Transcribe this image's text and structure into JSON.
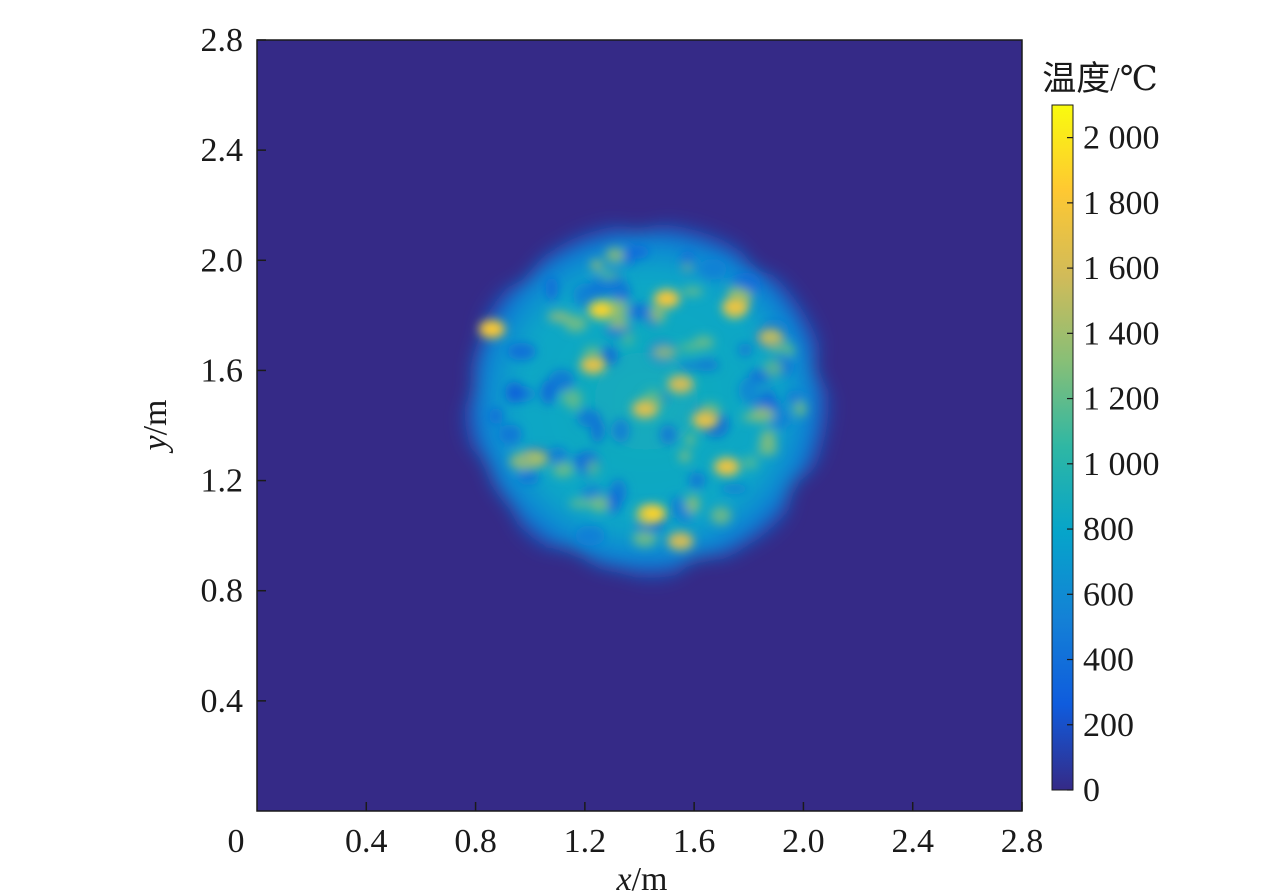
{
  "chart_data": {
    "type": "heatmap",
    "title": "",
    "xlabel": "x/m",
    "ylabel": "y/m",
    "xlim": [
      0,
      2.8
    ],
    "ylim": [
      0,
      2.8
    ],
    "x_ticks": [
      0.4,
      0.8,
      1.2,
      1.6,
      2.0,
      2.4,
      2.8
    ],
    "x_tick_labels": [
      "0.4",
      "0.8",
      "1.2",
      "1.6",
      "2.0",
      "2.4",
      "2.8"
    ],
    "y_ticks": [
      0.4,
      0.8,
      1.2,
      1.6,
      2.0,
      2.4,
      2.8
    ],
    "y_tick_labels": [
      "0.4",
      "0.8",
      "1.2",
      "1.6",
      "2.0",
      "2.4",
      "2.8"
    ],
    "origin_label": "0",
    "background_value": 0,
    "hot_region": {
      "center": [
        1.43,
        1.5
      ],
      "radius_x": 0.66,
      "radius_y": 0.64,
      "mean_value": 900,
      "peak_value": 1900
    },
    "hotspots": [
      {
        "x": 0.86,
        "y": 1.75,
        "value": 1850
      },
      {
        "x": 1.26,
        "y": 1.82,
        "value": 1900
      },
      {
        "x": 1.5,
        "y": 1.86,
        "value": 1800
      },
      {
        "x": 1.75,
        "y": 1.83,
        "value": 1750
      },
      {
        "x": 1.23,
        "y": 1.62,
        "value": 1700
      },
      {
        "x": 1.55,
        "y": 1.55,
        "value": 1600
      },
      {
        "x": 1.42,
        "y": 1.46,
        "value": 1650
      },
      {
        "x": 1.64,
        "y": 1.42,
        "value": 1700
      },
      {
        "x": 1.72,
        "y": 1.25,
        "value": 1750
      },
      {
        "x": 1.45,
        "y": 1.08,
        "value": 1900
      },
      {
        "x": 1.55,
        "y": 0.98,
        "value": 1600
      },
      {
        "x": 1.02,
        "y": 1.28,
        "value": 1400
      },
      {
        "x": 1.88,
        "y": 1.72,
        "value": 1500
      }
    ],
    "colorbar": {
      "title": "温度/℃",
      "min": 0,
      "max": 2100,
      "ticks": [
        0,
        200,
        400,
        600,
        800,
        1000,
        1200,
        1400,
        1600,
        1800,
        2000
      ],
      "tick_labels": [
        "0",
        "200",
        "400",
        "600",
        "800",
        "1 000",
        "1 200",
        "1 400",
        "1 600",
        "1 800",
        "2 000"
      ],
      "colormap": [
        "#352a87",
        "#0f5cdd",
        "#1481d6",
        "#06a4ca",
        "#2eb7a4",
        "#87bf77",
        "#d1bb59",
        "#fec832",
        "#f9fb0e"
      ]
    },
    "grid": false
  }
}
